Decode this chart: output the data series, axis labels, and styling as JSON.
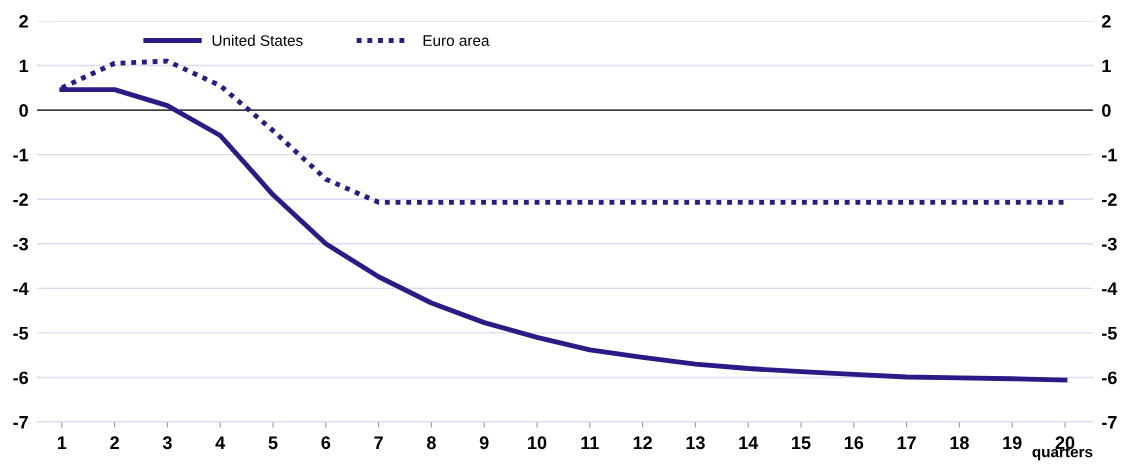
{
  "chart_data": {
    "type": "line",
    "xlabel": "quarters",
    "categories": [
      "1",
      "2",
      "3",
      "4",
      "5",
      "6",
      "7",
      "8",
      "9",
      "10",
      "11",
      "12",
      "13",
      "14",
      "15",
      "16",
      "17",
      "18",
      "19",
      "20"
    ],
    "series": [
      {
        "name": "United States",
        "color": "#2e1a87",
        "line_style": "solid",
        "values": [
          0.46,
          0.46,
          0.1,
          -0.57,
          -1.9,
          -3.0,
          -3.74,
          -4.33,
          -4.77,
          -5.1,
          -5.38,
          -5.55,
          -5.7,
          -5.8,
          -5.87,
          -5.93,
          -5.99,
          -6.01,
          -6.03,
          -6.06
        ]
      },
      {
        "name": "Euro area",
        "color": "#2e1a87",
        "line_style": "dotted",
        "values": [
          0.5,
          1.05,
          1.1,
          0.55,
          -0.46,
          -1.55,
          -2.07,
          -2.07,
          -2.07,
          -2.07,
          -2.07,
          -2.07,
          -2.07,
          -2.07,
          -2.07,
          -2.07,
          -2.07,
          -2.07,
          -2.07,
          -2.07
        ]
      }
    ],
    "ylim": [
      -7,
      2
    ],
    "yticks": [
      -7,
      -6,
      -5,
      -4,
      -3,
      -2,
      -1,
      0,
      1,
      2
    ],
    "y2lim": [
      -7,
      2
    ],
    "y2ticks": [
      -7,
      -6,
      -5,
      -4,
      -3,
      -2,
      -1,
      0,
      1,
      2
    ],
    "ref_lines": [
      {
        "axis": "y",
        "value": 0,
        "color": "#000000"
      }
    ],
    "grid": "y",
    "legend": "top left",
    "marker": "none"
  }
}
